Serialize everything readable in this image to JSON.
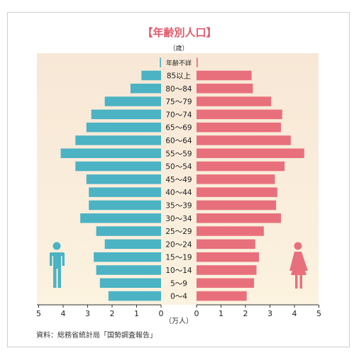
{
  "chart_data": {
    "type": "bar",
    "title": "【年齢別人口】",
    "age_unit_label": "（歳）",
    "value_unit_label": "（万人）",
    "source_note": "資料：総務省統計局「国勢調査報告」",
    "categories": [
      "年齢不詳",
      "85以上",
      "80～84",
      "75～79",
      "70～74",
      "65～69",
      "60～64",
      "55～59",
      "50～54",
      "45～49",
      "40～44",
      "35～39",
      "30～34",
      "25～29",
      "20～24",
      "15～19",
      "10～14",
      "5～9",
      "0～4"
    ],
    "series": [
      {
        "side": "left",
        "color": "#4bb3c4",
        "values": [
          0.05,
          0.8,
          1.25,
          2.3,
          2.85,
          3.05,
          3.5,
          4.1,
          3.5,
          3.05,
          2.95,
          2.95,
          3.3,
          2.65,
          2.3,
          2.75,
          2.65,
          2.5,
          2.15
        ]
      },
      {
        "side": "right",
        "color": "#e8707c",
        "values": [
          0.05,
          2.25,
          2.3,
          3.05,
          3.5,
          3.45,
          3.85,
          4.4,
          3.6,
          3.2,
          3.3,
          3.25,
          3.45,
          2.75,
          2.4,
          2.55,
          2.45,
          2.35,
          2.05
        ]
      }
    ],
    "xlim": [
      0,
      5
    ],
    "ticks": [
      "5",
      "4",
      "3",
      "2",
      "1",
      "0",
      "0",
      "1",
      "2",
      "3",
      "4",
      "5"
    ],
    "colors": {
      "background": "#f9ecd6",
      "male_icon": "#4bb3c4",
      "female_icon": "#e8707c",
      "title": "#e05a6b"
    },
    "icons": [
      "male-figure-icon",
      "female-figure-icon"
    ]
  }
}
